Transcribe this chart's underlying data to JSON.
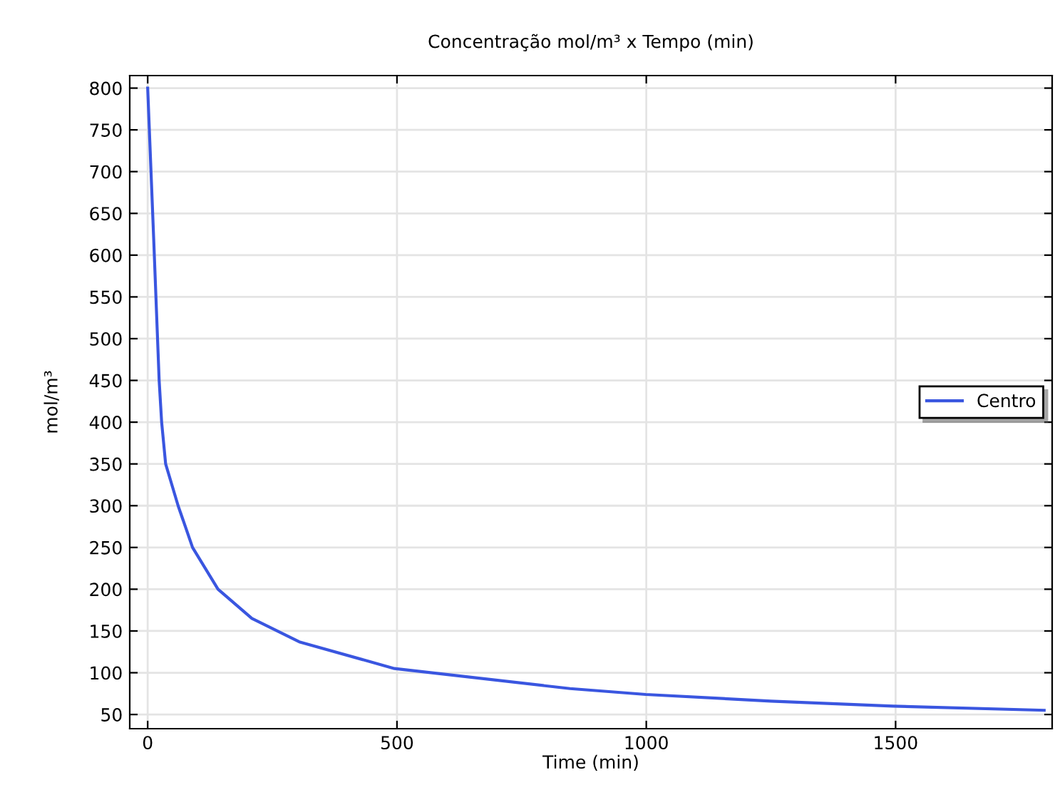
{
  "chart_data": {
    "type": "line",
    "title": "Concentração mol/m³ x Tempo (min)",
    "xlabel": "Time (min)",
    "ylabel": "mol/m³",
    "series": [
      {
        "name": "Centro",
        "color": "#3a56e0",
        "x": [
          0,
          12,
          23,
          28,
          36,
          61,
          90,
          141,
          209,
          304,
          495,
          847,
          999,
          1250,
          1495,
          1798
        ],
        "values": [
          800,
          620,
          450,
          400,
          350,
          300,
          250,
          200,
          165,
          137,
          105,
          81,
          74,
          66,
          60,
          55
        ]
      }
    ],
    "xlim": [
      -36,
      1814
    ],
    "ylim": [
      33,
      815
    ],
    "xticks": [
      0,
      500,
      1000,
      1500
    ],
    "yticks": [
      50,
      100,
      150,
      200,
      250,
      300,
      350,
      400,
      450,
      500,
      550,
      600,
      650,
      700,
      750,
      800
    ],
    "grid": true,
    "legend": "right"
  }
}
